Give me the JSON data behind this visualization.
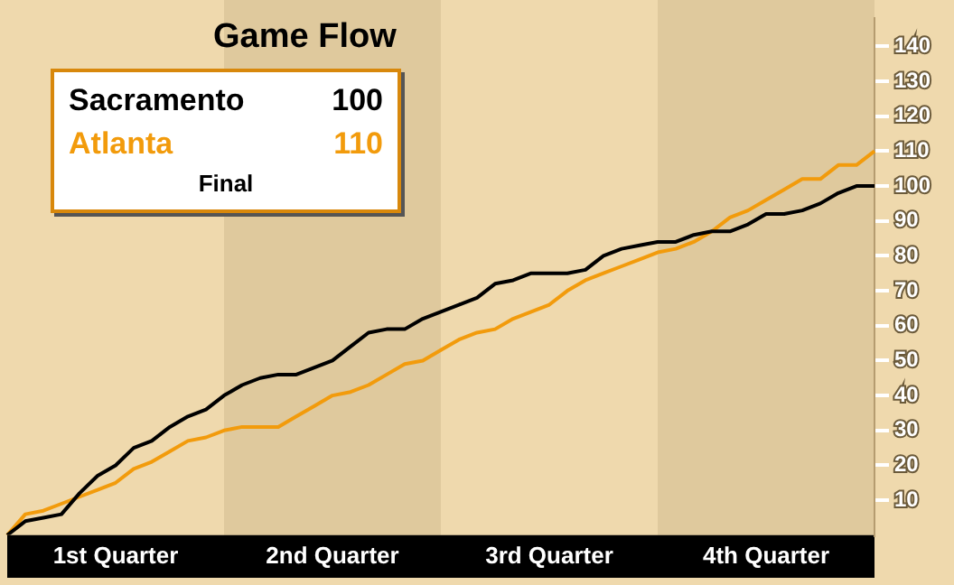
{
  "chart_data": {
    "type": "line",
    "title": "Game Flow",
    "categories": [
      null,
      null,
      null,
      null,
      null,
      null,
      "1st Quarter",
      null,
      null,
      null,
      null,
      null,
      null,
      null,
      null,
      null,
      null,
      null,
      "2nd Quarter",
      null,
      null,
      null,
      null,
      null,
      null,
      null,
      null,
      null,
      null,
      null,
      "3rd Quarter",
      null,
      null,
      null,
      null,
      null,
      null,
      null,
      null,
      null,
      null,
      null,
      "4th Quarter",
      null,
      null,
      null,
      null,
      null,
      null
    ],
    "ylim": [
      0,
      148
    ],
    "yticks": [
      10,
      20,
      30,
      40,
      50,
      60,
      70,
      80,
      90,
      100,
      110,
      120,
      130,
      140
    ],
    "series": [
      {
        "name": "Sacramento",
        "color": "#000000",
        "values": [
          0,
          4,
          5,
          6,
          12,
          17,
          20,
          25,
          27,
          31,
          34,
          36,
          40,
          43,
          45,
          46,
          46,
          48,
          50,
          54,
          58,
          59,
          59,
          62,
          64,
          66,
          68,
          72,
          73,
          75,
          75,
          75,
          76,
          80,
          82,
          83,
          84,
          84,
          86,
          87,
          87,
          89,
          92,
          92,
          93,
          95,
          98,
          100,
          100
        ]
      },
      {
        "name": "Atlanta",
        "color": "#f29b0c",
        "values": [
          0,
          6,
          7,
          9,
          11,
          13,
          15,
          19,
          21,
          24,
          27,
          28,
          30,
          31,
          31,
          31,
          34,
          37,
          40,
          41,
          43,
          46,
          49,
          50,
          53,
          56,
          58,
          59,
          62,
          64,
          66,
          70,
          73,
          75,
          77,
          79,
          81,
          82,
          84,
          87,
          91,
          93,
          96,
          99,
          102,
          102,
          106,
          106,
          110
        ]
      }
    ],
    "annotations": [
      "100",
      "110",
      "Final"
    ],
    "legend": "top left",
    "grid": false,
    "marker": "none",
    "line_style": "solid"
  }
}
